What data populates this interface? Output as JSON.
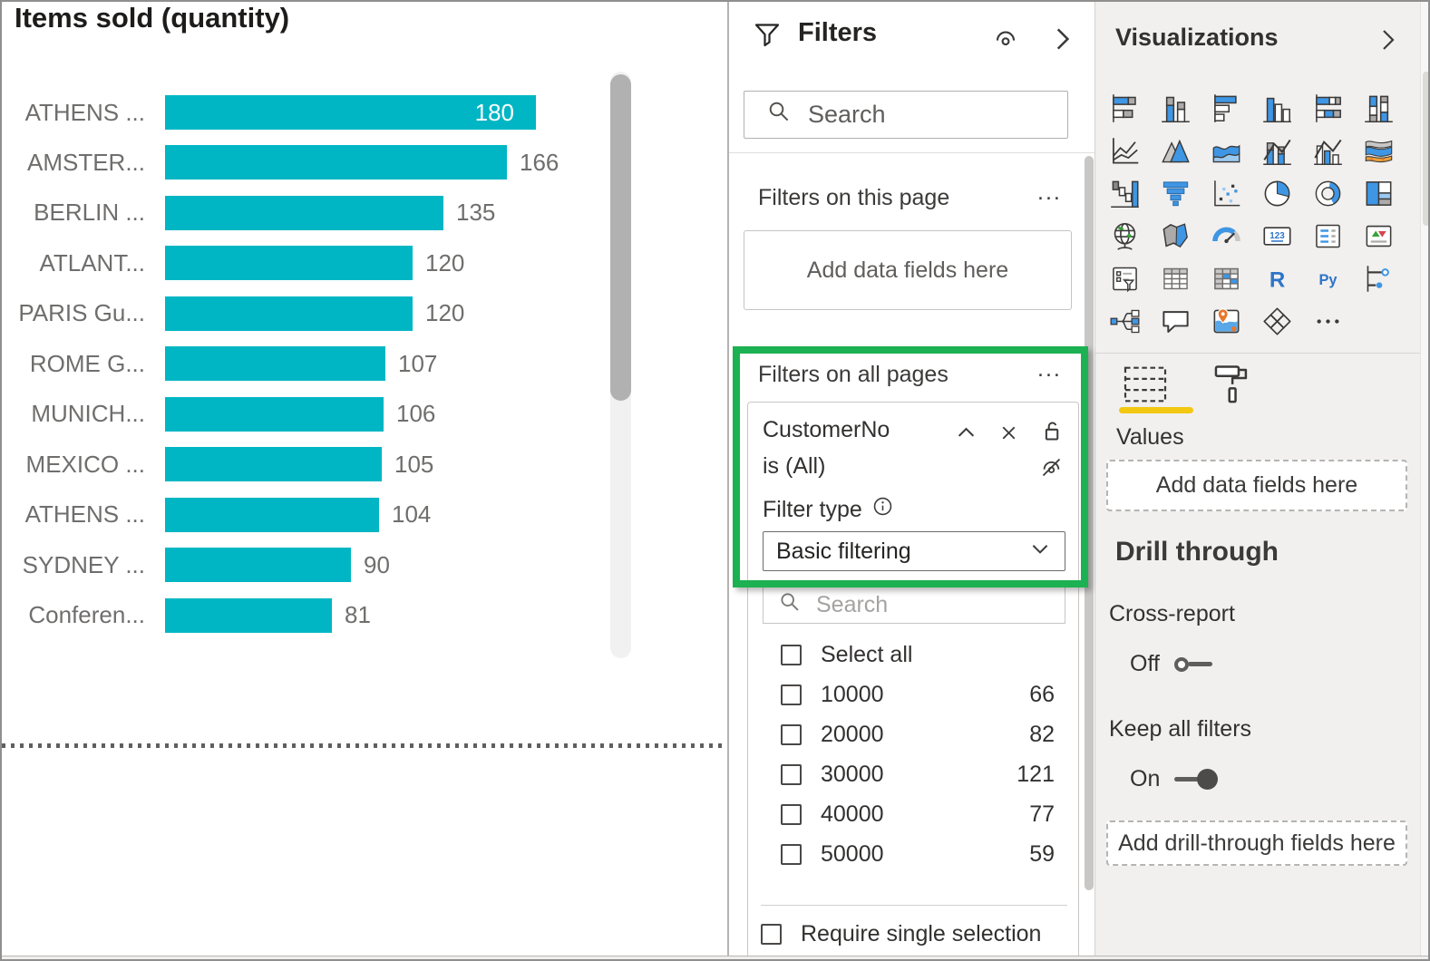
{
  "chart_data": {
    "type": "bar",
    "orientation": "horizontal",
    "title": "Items sold (quantity)",
    "categories": [
      "ATHENS ...",
      "AMSTER...",
      "BERLIN ...",
      "ATLANT...",
      "PARIS Gu...",
      "ROME G...",
      "MUNICH...",
      "MEXICO ...",
      "ATHENS ...",
      "SYDNEY ...",
      "Conferen..."
    ],
    "values": [
      180,
      166,
      135,
      120,
      120,
      107,
      106,
      105,
      104,
      90,
      81
    ],
    "xlabel": "",
    "ylabel": "",
    "value_labels_shown": true,
    "bar_color": "#00B6C4",
    "first_value_label_inside_bar": true
  },
  "filters": {
    "title": "Filters",
    "search_placeholder": "Search",
    "highlight_color": "#1CB152",
    "on_this_page": {
      "title": "Filters on this page",
      "more": "...",
      "placeholder": "Add data fields here"
    },
    "on_all_pages": {
      "title": "Filters on all pages",
      "more": "..."
    },
    "card": {
      "field_name": "CustomerNo",
      "state": "is (All)",
      "filter_type_label": "Filter type",
      "filter_type_value": "Basic filtering",
      "search_placeholder": "Search",
      "select_all_label": "Select all",
      "options": [
        {
          "label": "10000",
          "count": "66"
        },
        {
          "label": "20000",
          "count": "82"
        },
        {
          "label": "30000",
          "count": "121"
        },
        {
          "label": "40000",
          "count": "77"
        },
        {
          "label": "50000",
          "count": "59"
        }
      ],
      "require_single_selection_label": "Require single selection"
    }
  },
  "visualizations": {
    "title": "Visualizations",
    "values_label": "Values",
    "add_data_fields_placeholder": "Add data fields here",
    "drill_through_title": "Drill through",
    "cross_report_label": "Cross-report",
    "cross_report_state": "Off",
    "keep_all_filters_label": "Keep all filters",
    "keep_all_filters_state": "On",
    "add_drill_through_placeholder": "Add drill-through fields here",
    "accent_yellow": "#F2C811",
    "icon_names": [
      "stacked-bar-chart",
      "stacked-column-chart",
      "clustered-bar-chart",
      "clustered-column-chart",
      "hundred-percent-stacked-bar-chart",
      "hundred-percent-stacked-column-chart",
      "line-chart",
      "area-chart",
      "stacked-area-chart",
      "line-and-stacked-column-chart",
      "line-and-clustered-column-chart",
      "ribbon-chart",
      "waterfall-chart",
      "funnel-chart",
      "scatter-chart",
      "pie-chart",
      "donut-chart",
      "treemap",
      "map",
      "filled-map",
      "gauge",
      "card",
      "multi-row-card",
      "kpi",
      "slicer",
      "table",
      "matrix",
      "r-script-visual",
      "python-visual",
      "key-influencers",
      "decomposition-tree",
      "q-and-a",
      "arcgis-map",
      "power-apps",
      "more-options"
    ]
  }
}
